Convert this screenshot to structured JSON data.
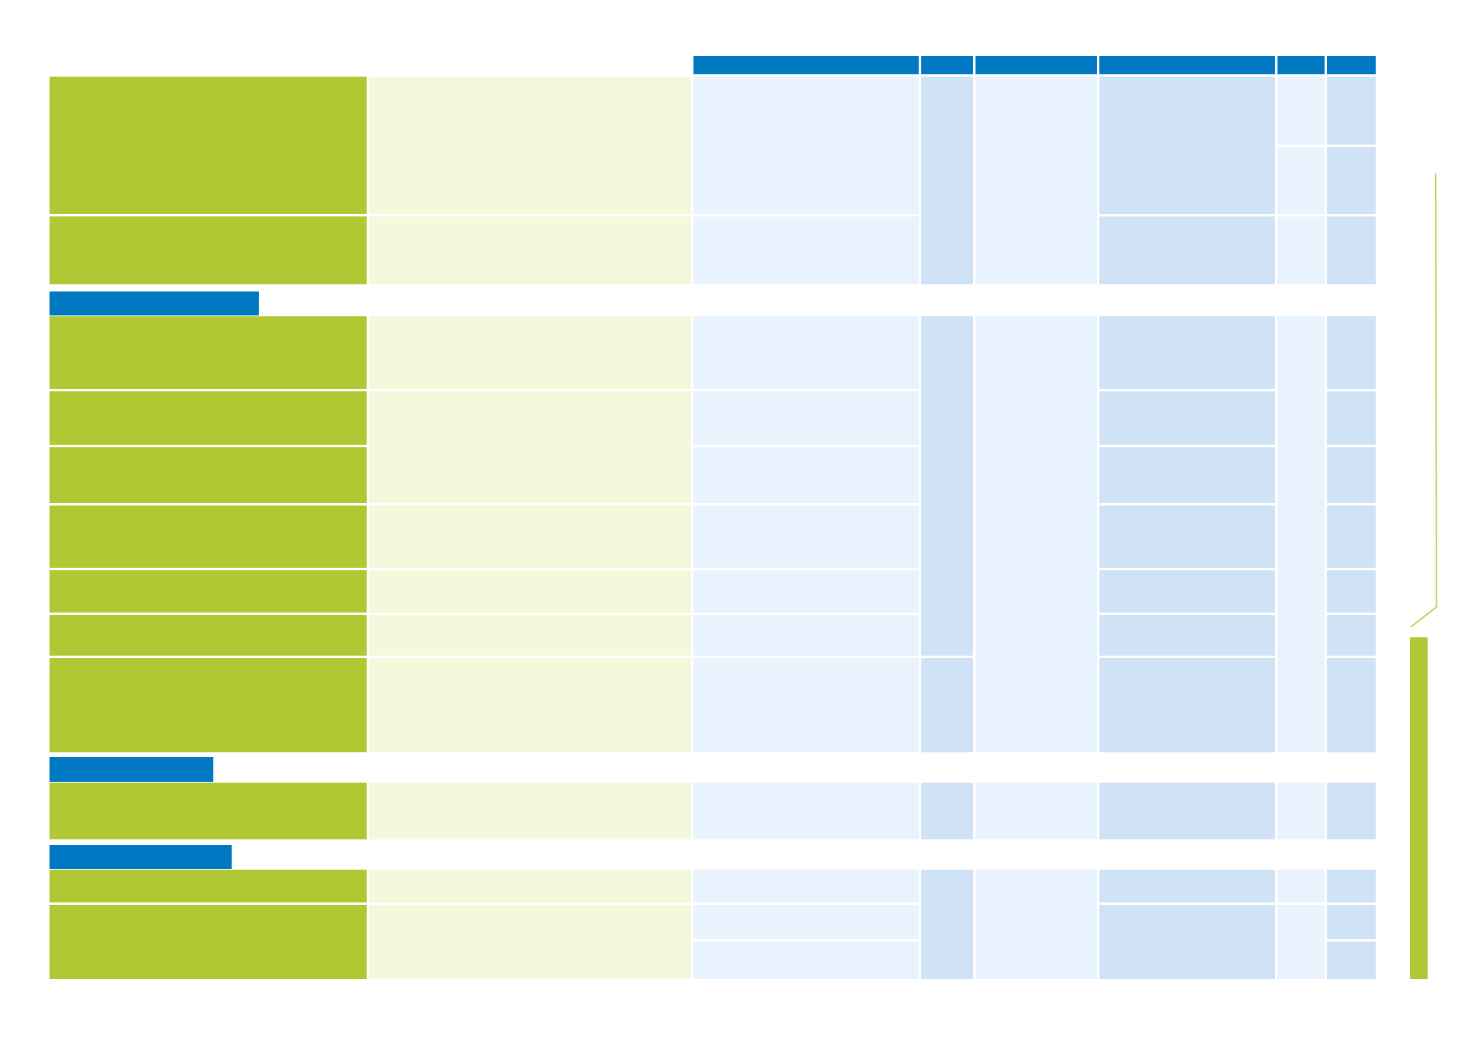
{
  "document": {
    "header": {
      "columns": [
        "",
        "",
        "",
        "",
        "",
        ""
      ]
    },
    "sections": [
      {
        "title": ""
      },
      {
        "title": ""
      },
      {
        "title": ""
      }
    ],
    "sidebar": {
      "label": ""
    }
  }
}
